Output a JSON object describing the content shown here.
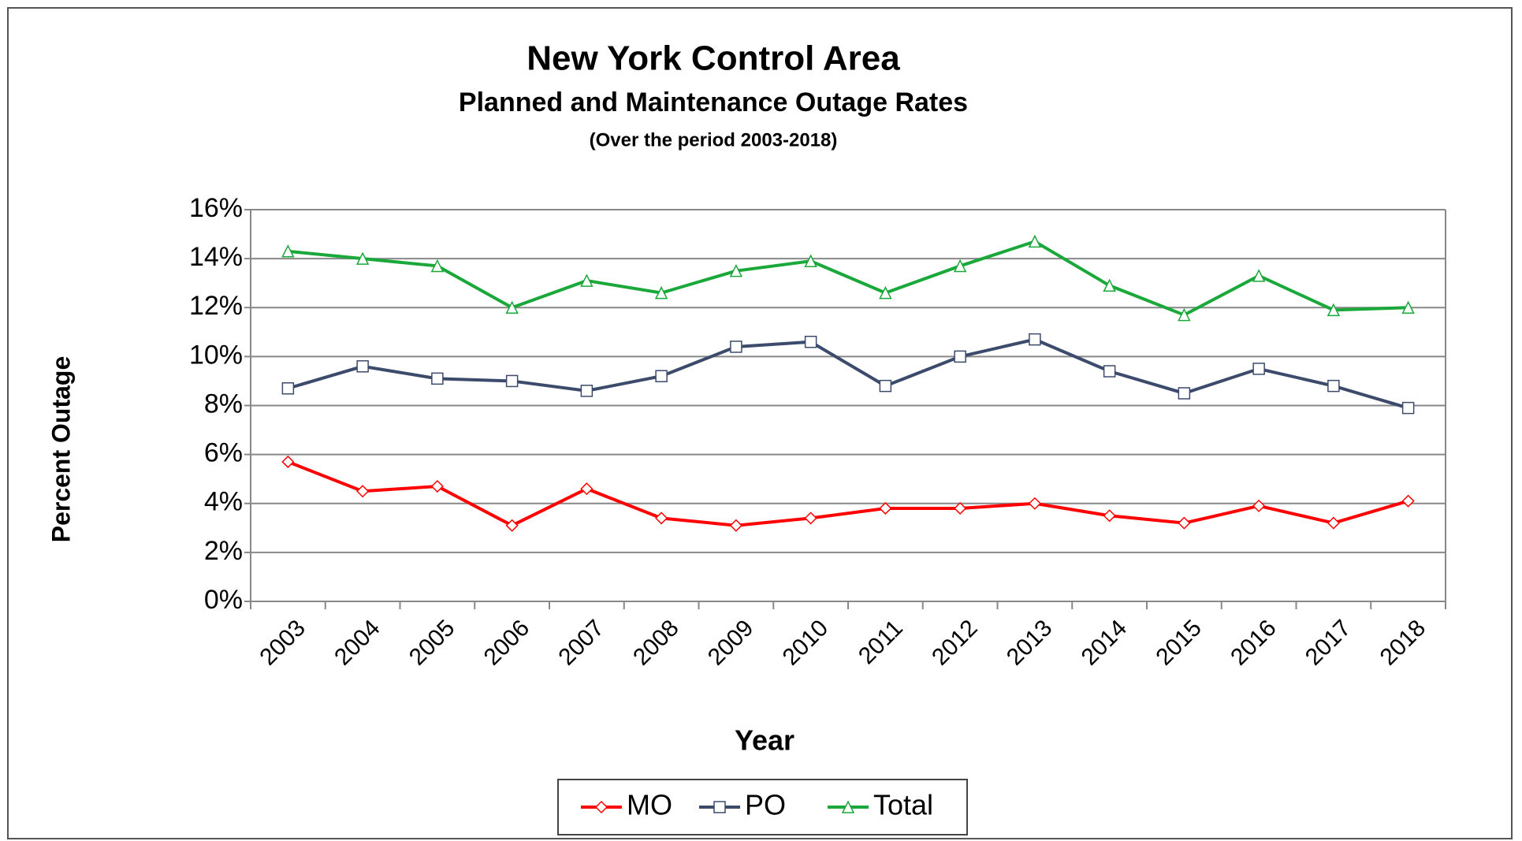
{
  "chart_data": {
    "type": "line",
    "title": "New York Control Area",
    "subtitle": "Planned and Maintenance Outage Rates",
    "note": "(Over the period 2003-2018)",
    "x_label": "Year",
    "y_label": "Percent Outage",
    "categories": [
      "2003",
      "2004",
      "2005",
      "2006",
      "2007",
      "2008",
      "2009",
      "2010",
      "2011",
      "2012",
      "2013",
      "2014",
      "2015",
      "2016",
      "2017",
      "2018"
    ],
    "series": [
      {
        "name": "MO",
        "color": "#ff0000",
        "marker": "diamond",
        "values": [
          5.7,
          4.5,
          4.7,
          3.1,
          4.6,
          3.4,
          3.1,
          3.4,
          3.8,
          3.8,
          4.0,
          3.5,
          3.2,
          3.9,
          3.2,
          4.1
        ]
      },
      {
        "name": "PO",
        "color": "#3c4a6b",
        "marker": "square",
        "values": [
          8.7,
          9.6,
          9.1,
          9.0,
          8.6,
          9.2,
          10.4,
          10.6,
          8.8,
          10.0,
          10.7,
          9.4,
          8.5,
          9.5,
          8.8,
          7.9
        ]
      },
      {
        "name": "Total",
        "color": "#1aa83a",
        "marker": "triangle",
        "values": [
          14.3,
          14.0,
          13.7,
          12.0,
          13.1,
          12.6,
          13.5,
          13.9,
          12.6,
          13.7,
          14.7,
          12.9,
          11.7,
          13.3,
          11.9,
          12.0
        ]
      }
    ],
    "ylim": [
      0,
      16
    ],
    "yticks": [
      {
        "value": 0,
        "label": "0%"
      },
      {
        "value": 2,
        "label": "2%"
      },
      {
        "value": 4,
        "label": "4%"
      },
      {
        "value": 6,
        "label": "6%"
      },
      {
        "value": 8,
        "label": "8%"
      },
      {
        "value": 10,
        "label": "10%"
      },
      {
        "value": 12,
        "label": "12%"
      },
      {
        "value": 14,
        "label": "14%"
      },
      {
        "value": 16,
        "label": "16%"
      }
    ],
    "grid": true,
    "legend": "bottom"
  }
}
